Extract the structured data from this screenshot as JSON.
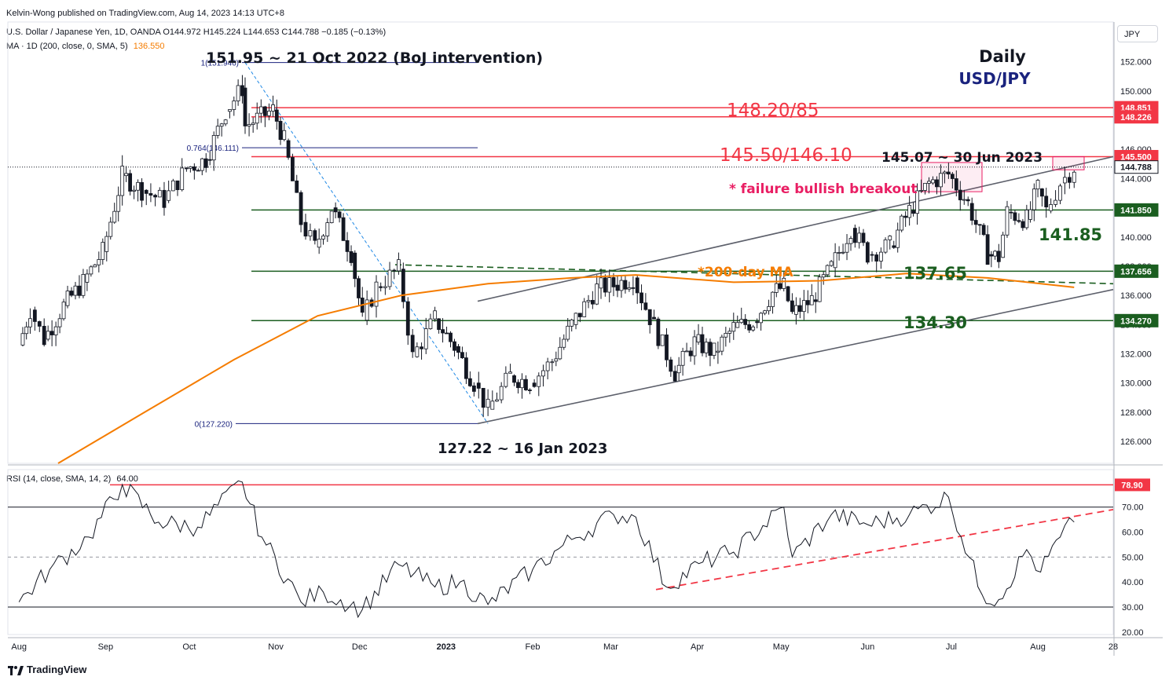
{
  "header": {
    "publisher": "Kelvin-Wong published on TradingView.com, Aug 14, 2023 14:13 UTC+8",
    "symbol_line": "U.S. Dollar / Japanese Yen, 1D, OANDA  O144.972  H145.224  L144.653  C144.788  −0.185 (−0.13%)",
    "ma_line": "MA · 1D (200, close, 0, SMA, 5)",
    "ma_value": "136.550",
    "currency_button": "JPY"
  },
  "rsi_header": {
    "label": "RSI (14, close, SMA, 14, 2)",
    "value": "64.00"
  },
  "footer": {
    "brand": "TradingView"
  },
  "colors": {
    "up": "#26a69a",
    "candle": "#131722",
    "ma": "#f57c00",
    "red": "#f23645",
    "green": "#1b5e20",
    "navy": "#1a237e",
    "grey": "#5d606b"
  },
  "chart_data": [
    {
      "type": "candlestick",
      "title": "Daily",
      "subtitle": "USD/JPY",
      "x_tick_labels": [
        "Aug",
        "Sep",
        "Oct",
        "Nov",
        "Dec",
        "2023",
        "Feb",
        "Mar",
        "Apr",
        "May",
        "Jun",
        "Jul",
        "Aug",
        "28"
      ],
      "y_tick_labels": [
        "126.000",
        "128.000",
        "130.000",
        "132.000",
        "134.000",
        "136.000",
        "138.000",
        "140.000",
        "142.000",
        "144.000",
        "146.000",
        "148.000",
        "150.000",
        "152.000"
      ],
      "ylim": [
        124.5,
        153.0
      ],
      "series": [
        {
          "name": "USD/JPY",
          "values_close": [
            [
              "2022-08-01",
              132.6
            ],
            [
              "2022-08-05",
              135.0
            ],
            [
              "2022-08-10",
              133.0
            ],
            [
              "2022-08-17",
              135.3
            ],
            [
              "2022-08-24",
              136.9
            ],
            [
              "2022-08-31",
              139.0
            ],
            [
              "2022-09-07",
              144.2
            ],
            [
              "2022-09-14",
              143.2
            ],
            [
              "2022-09-22",
              142.5
            ],
            [
              "2022-09-30",
              144.7
            ],
            [
              "2022-10-07",
              145.3
            ],
            [
              "2022-10-14",
              148.6
            ],
            [
              "2022-10-20",
              150.2
            ],
            [
              "2022-10-21",
              147.6
            ],
            [
              "2022-10-31",
              148.7
            ],
            [
              "2022-11-04",
              146.6
            ],
            [
              "2022-11-10",
              141.0
            ],
            [
              "2022-11-15",
              139.3
            ],
            [
              "2022-11-21",
              142.0
            ],
            [
              "2022-11-28",
              138.9
            ],
            [
              "2022-12-02",
              134.3
            ],
            [
              "2022-12-07",
              136.6
            ],
            [
              "2022-12-15",
              137.8
            ],
            [
              "2022-12-20",
              131.8
            ],
            [
              "2022-12-28",
              134.4
            ],
            [
              "2023-01-04",
              132.5
            ],
            [
              "2023-01-11",
              130.0
            ],
            [
              "2023-01-16",
              128.2
            ],
            [
              "2023-01-24",
              130.5
            ],
            [
              "2023-01-31",
              130.0
            ],
            [
              "2023-02-08",
              131.5
            ],
            [
              "2023-02-15",
              134.0
            ],
            [
              "2023-02-24",
              136.5
            ],
            [
              "2023-03-02",
              136.7
            ],
            [
              "2023-03-09",
              137.2
            ],
            [
              "2023-03-15",
              134.5
            ],
            [
              "2023-03-24",
              130.7
            ],
            [
              "2023-03-31",
              132.8
            ],
            [
              "2023-04-07",
              132.1
            ],
            [
              "2023-04-14",
              133.8
            ],
            [
              "2023-04-21",
              134.2
            ],
            [
              "2023-04-28",
              136.2
            ],
            [
              "2023-05-02",
              136.6
            ],
            [
              "2023-05-05",
              134.7
            ],
            [
              "2023-05-12",
              135.7
            ],
            [
              "2023-05-19",
              137.9
            ],
            [
              "2023-05-26",
              140.6
            ],
            [
              "2023-06-01",
              138.8
            ],
            [
              "2023-06-09",
              139.4
            ],
            [
              "2023-06-16",
              141.8
            ],
            [
              "2023-06-23",
              143.7
            ],
            [
              "2023-06-30",
              144.3
            ],
            [
              "2023-07-07",
              142.3
            ],
            [
              "2023-07-14",
              138.8
            ],
            [
              "2023-07-18",
              138.6
            ],
            [
              "2023-07-21",
              141.7
            ],
            [
              "2023-07-28",
              141.2
            ],
            [
              "2023-08-01",
              143.3
            ],
            [
              "2023-08-04",
              141.8
            ],
            [
              "2023-08-09",
              143.7
            ],
            [
              "2023-08-14",
              144.788
            ]
          ]
        },
        {
          "name": "MA (200)",
          "values": [
            [
              "2022-08-15",
              124.5
            ],
            [
              "2022-09-15",
              128.0
            ],
            [
              "2022-10-17",
              131.6
            ],
            [
              "2022-11-16",
              134.6
            ],
            [
              "2022-12-16",
              136.0
            ],
            [
              "2023-01-16",
              136.8
            ],
            [
              "2023-02-15",
              137.2
            ],
            [
              "2023-03-10",
              137.4
            ],
            [
              "2023-04-14",
              136.9
            ],
            [
              "2023-05-15",
              137.0
            ],
            [
              "2023-06-15",
              137.5
            ],
            [
              "2023-07-14",
              137.2
            ],
            [
              "2023-08-14",
              136.55
            ]
          ]
        }
      ],
      "price_badges": [
        {
          "label": "148.851",
          "value": 148.851,
          "color": "#f23645"
        },
        {
          "label": "148.226",
          "value": 148.226,
          "color": "#f23645"
        },
        {
          "label": "145.500",
          "value": 145.5,
          "color": "#f23645"
        },
        {
          "label": "144.788",
          "value": 144.788,
          "color": "#ffffff"
        },
        {
          "label": "141.850",
          "value": 141.85,
          "color": "#1b5e20"
        },
        {
          "label": "137.656",
          "value": 137.656,
          "color": "#1b5e20"
        },
        {
          "label": "134.270",
          "value": 134.27,
          "color": "#1b5e20"
        }
      ],
      "horizontal_levels": [
        {
          "value": 148.851,
          "color": "#f23645"
        },
        {
          "value": 148.226,
          "color": "#f23645"
        },
        {
          "value": 145.5,
          "color": "#f23645"
        },
        {
          "value": 141.85,
          "color": "#1b5e20"
        },
        {
          "value": 137.656,
          "color": "#1b5e20"
        },
        {
          "value": 134.27,
          "color": "#1b5e20"
        }
      ],
      "fibonacci": [
        {
          "label": "1(151.946)",
          "value": 151.946
        },
        {
          "label": "0.764(146.111)",
          "value": 146.111
        },
        {
          "label": "0(127.220)",
          "value": 127.22
        }
      ],
      "annotations": [
        {
          "text": "151.95 ~ 21 Oct 2022 (BoJ intervention)",
          "color": "#131722"
        },
        {
          "text": "148.20/85",
          "color": "#f23645"
        },
        {
          "text": "145.50/146.10",
          "color": "#f23645"
        },
        {
          "text": "145.07 ~ 30 Jun 2023",
          "color": "#131722"
        },
        {
          "text": "* failure bullish breakout",
          "color": "#e91e63"
        },
        {
          "text": "*200-day MA",
          "color": "#f57c00"
        },
        {
          "text": "137.65",
          "color": "#1b5e20"
        },
        {
          "text": "141.85",
          "color": "#1b5e20"
        },
        {
          "text": "134.30",
          "color": "#1b5e20"
        },
        {
          "text": "127.22 ~ 16 Jan 2023",
          "color": "#131722"
        }
      ]
    },
    {
      "type": "line",
      "title": "RSI (14, close, SMA, 14, 2)",
      "y_tick_labels": [
        "20.00",
        "30.00",
        "40.00",
        "50.00",
        "60.00",
        "70.00"
      ],
      "ylim": [
        19,
        85
      ],
      "levels": [
        70,
        50,
        30
      ],
      "series": [
        {
          "name": "RSI",
          "values": [
            [
              "2022-08-01",
              32
            ],
            [
              "2022-08-12",
              45
            ],
            [
              "2022-08-26",
              58
            ],
            [
              "2022-09-07",
              79
            ],
            [
              "2022-09-20",
              64
            ],
            [
              "2022-10-04",
              62
            ],
            [
              "2022-10-20",
              80
            ],
            [
              "2022-10-27",
              58
            ],
            [
              "2022-11-10",
              32
            ],
            [
              "2022-11-18",
              36
            ],
            [
              "2022-12-02",
              29
            ],
            [
              "2022-12-15",
              47
            ],
            [
              "2022-12-28",
              38
            ],
            [
              "2023-01-06",
              40
            ],
            [
              "2023-01-16",
              31
            ],
            [
              "2023-02-01",
              45
            ],
            [
              "2023-02-15",
              57
            ],
            [
              "2023-03-02",
              67
            ],
            [
              "2023-03-10",
              66
            ],
            [
              "2023-03-21",
              38
            ],
            [
              "2023-04-03",
              48
            ],
            [
              "2023-04-14",
              52
            ],
            [
              "2023-05-02",
              70
            ],
            [
              "2023-05-05",
              50
            ],
            [
              "2023-05-19",
              67
            ],
            [
              "2023-06-01",
              63
            ],
            [
              "2023-06-16",
              67
            ],
            [
              "2023-06-30",
              74
            ],
            [
              "2023-07-12",
              35
            ],
            [
              "2023-07-18",
              33
            ],
            [
              "2023-07-28",
              53
            ],
            [
              "2023-08-02",
              44
            ],
            [
              "2023-08-09",
              58
            ],
            [
              "2023-08-14",
              64
            ]
          ]
        }
      ],
      "price_badges": [
        {
          "label": "78.90",
          "value": 78.9,
          "color": "#f23645"
        }
      ]
    }
  ]
}
